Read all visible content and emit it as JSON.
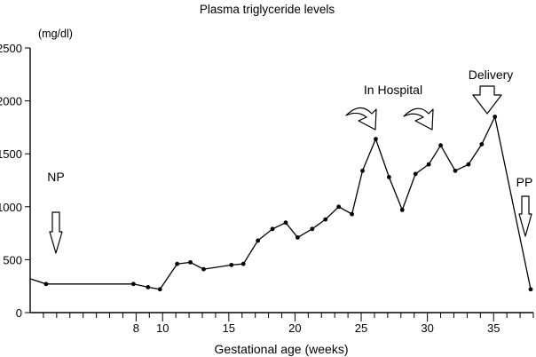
{
  "chart_data": {
    "type": "line",
    "title": "Plasma triglyceride levels",
    "xlabel": "Gestational age (weeks)",
    "ylabel": "(mg/dl)",
    "ylim": [
      0,
      2500
    ],
    "xlim": [
      0,
      38
    ],
    "yticks": [
      0,
      500,
      1000,
      1500,
      2000,
      2500
    ],
    "xtick_labels": [
      {
        "value": 8,
        "label": "8"
      },
      {
        "value": 10,
        "label": "10"
      },
      {
        "value": 15,
        "label": "15"
      },
      {
        "value": 20,
        "label": "20"
      },
      {
        "value": 25,
        "label": "25"
      },
      {
        "value": 30,
        "label": "30"
      },
      {
        "value": 35,
        "label": "35"
      }
    ],
    "minor_tick_step": 1,
    "line_start": {
      "x": 0,
      "y": 320
    },
    "series": [
      {
        "name": "Plasma triglycerides",
        "x": [
          1.2,
          7.8,
          8.9,
          9.8,
          11.1,
          12.1,
          13.1,
          15.2,
          16.1,
          17.2,
          18.3,
          19.3,
          20.2,
          21.3,
          22.3,
          23.3,
          24.3,
          25.1,
          26.1,
          27.1,
          28.1,
          29.1,
          30.1,
          31.0,
          32.1,
          33.1,
          34.1,
          35.1,
          37.8
        ],
        "y": [
          270,
          270,
          240,
          220,
          460,
          475,
          410,
          450,
          460,
          680,
          790,
          850,
          710,
          790,
          880,
          1000,
          930,
          1340,
          1640,
          1280,
          970,
          1310,
          1400,
          1580,
          1340,
          1400,
          1590,
          1850,
          220
        ]
      }
    ],
    "annotations": [
      {
        "id": "np",
        "label": "NP",
        "x": 1.0
      },
      {
        "id": "in-hospital",
        "label": "In Hospital",
        "x": 28.6
      },
      {
        "id": "delivery",
        "label": "Delivery",
        "x": 35.1
      },
      {
        "id": "pp",
        "label": "PP",
        "x": 37.8
      }
    ]
  }
}
